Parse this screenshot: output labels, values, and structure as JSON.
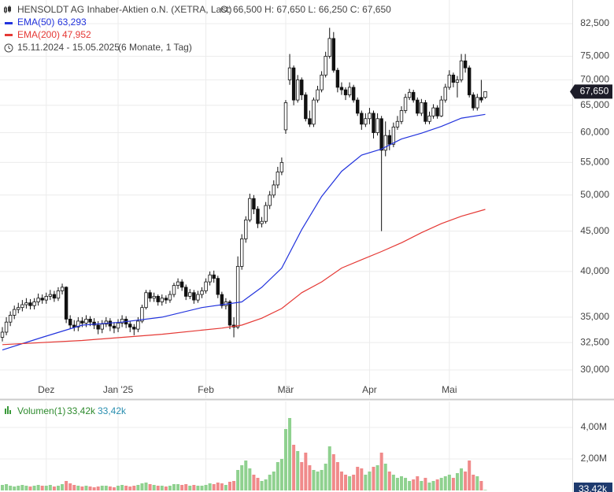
{
  "chart_data": {
    "type": "candlestick",
    "title": "HENSOLDT AG Inhaber-Aktien o.N. (XETRA, Last)",
    "ohlc_text": "O: 66,500  H: 67,650  L: 66,250  C: 67,650",
    "period": "15.11.2024 - 15.05.2025",
    "period_note": "(6 Monate, 1 Tag)",
    "last_price_label": "67,650",
    "up_color": "#ffffff",
    "down_color": "#111111",
    "log_scale": true,
    "grid": true,
    "ylim": [
      27.55,
      88.4
    ],
    "yticks": [
      {
        "value": 30,
        "label": "30,000"
      },
      {
        "value": 32.5,
        "label": "32,500"
      },
      {
        "value": 35,
        "label": "35,000"
      },
      {
        "value": 40,
        "label": "40,000"
      },
      {
        "value": 45,
        "label": "45,000"
      },
      {
        "value": 50,
        "label": "50,000"
      },
      {
        "value": 55,
        "label": "55,000"
      },
      {
        "value": 60,
        "label": "60,000"
      },
      {
        "value": 65,
        "label": "65,000"
      },
      {
        "value": 70,
        "label": "70,000"
      },
      {
        "value": 75,
        "label": "75,000"
      },
      {
        "value": 82.5,
        "label": "82,500"
      }
    ],
    "categories": [
      null,
      null,
      null,
      null,
      null,
      null,
      null,
      null,
      null,
      null,
      null,
      "Dez",
      null,
      null,
      null,
      null,
      null,
      null,
      null,
      null,
      null,
      null,
      null,
      null,
      null,
      null,
      null,
      null,
      null,
      "Jan '25",
      null,
      null,
      null,
      null,
      null,
      null,
      null,
      null,
      null,
      null,
      null,
      null,
      null,
      null,
      null,
      null,
      null,
      null,
      null,
      null,
      null,
      "Feb",
      null,
      null,
      null,
      null,
      null,
      null,
      null,
      null,
      null,
      null,
      null,
      null,
      null,
      null,
      null,
      null,
      null,
      null,
      null,
      "Mär",
      null,
      null,
      null,
      null,
      null,
      null,
      null,
      null,
      null,
      null,
      null,
      null,
      null,
      null,
      null,
      null,
      null,
      null,
      null,
      null,
      "Apr",
      null,
      null,
      null,
      null,
      null,
      null,
      null,
      null,
      null,
      null,
      null,
      null,
      null,
      null,
      null,
      null,
      null,
      null,
      null,
      "Mai",
      null,
      null,
      null,
      null,
      null,
      null,
      null,
      null,
      null
    ],
    "open": [
      33.0,
      33.5,
      34.5,
      35.2,
      35.8,
      36.0,
      36.3,
      36.5,
      36.2,
      36.6,
      37.0,
      36.8,
      37.2,
      37.4,
      37.0,
      37.8,
      38.2,
      34.8,
      34.2,
      34.0,
      34.6,
      34.4,
      34.8,
      34.5,
      34.2,
      33.8,
      34.3,
      34.6,
      34.1,
      33.9,
      34.4,
      34.8,
      34.3,
      34.0,
      33.8,
      34.6,
      36.0,
      37.6,
      37.0,
      37.2,
      36.6,
      37.0,
      36.8,
      37.4,
      38.4,
      38.8,
      38.2,
      37.2,
      37.6,
      36.8,
      37.4,
      37.8,
      38.8,
      39.6,
      39.2,
      37.4,
      36.2,
      36.6,
      34.2,
      34.0,
      40.6,
      44.0,
      46.5,
      49.5,
      48.0,
      46.0,
      46.3,
      48.5,
      50.0,
      51.5,
      53.5,
      60.5,
      70.0,
      72.5,
      66.0,
      70.0,
      67.0,
      62.5,
      61.5,
      66.0,
      68.0,
      71.0,
      75.0,
      79.0,
      72.0,
      68.5,
      68.0,
      67.0,
      68.5,
      66.0,
      63.5,
      61.5,
      62.5,
      63.5,
      60.0,
      62.5,
      57.0,
      59.5,
      58.0,
      61.0,
      62.0,
      64.0,
      66.5,
      67.5,
      66.0,
      63.5,
      65.5,
      62.0,
      63.0,
      64.5,
      63.0,
      66.0,
      68.5,
      71.0,
      69.5,
      70.0,
      74.0,
      72.5,
      67.0,
      64.5,
      66.5,
      66.5
    ],
    "high": [
      34.0,
      35.0,
      35.6,
      36.2,
      36.5,
      36.8,
      37.0,
      36.9,
      37.0,
      37.5,
      37.4,
      37.6,
      37.9,
      37.8,
      38.2,
      38.6,
      38.3,
      35.2,
      34.7,
      35.0,
      35.0,
      35.2,
      35.1,
      34.9,
      34.6,
      34.7,
      35.0,
      34.9,
      34.5,
      34.8,
      35.2,
      35.1,
      34.6,
      34.3,
      35.0,
      36.3,
      37.9,
      37.9,
      37.6,
      37.4,
      37.4,
      37.3,
      37.8,
      38.7,
      39.2,
      39.1,
      38.5,
      38.0,
      37.9,
      37.8,
      38.2,
      39.2,
      40.0,
      40.1,
      39.5,
      37.7,
      37.0,
      36.8,
      35.0,
      41.8,
      44.6,
      47.0,
      50.2,
      50.0,
      48.4,
      46.9,
      49.0,
      50.6,
      52.2,
      54.3,
      55.8,
      66.0,
      75.5,
      73.0,
      71.0,
      70.5,
      67.5,
      64.0,
      66.5,
      68.8,
      71.8,
      76.0,
      81.5,
      80.5,
      72.5,
      69.5,
      68.5,
      69.5,
      69.0,
      66.5,
      64.0,
      63.5,
      64.5,
      64.0,
      63.5,
      63.0,
      62.0,
      60.5,
      61.8,
      63.0,
      64.8,
      67.2,
      68.2,
      68.0,
      66.5,
      66.2,
      66.0,
      63.8,
      65.2,
      65.0,
      66.8,
      69.2,
      72.0,
      71.5,
      70.8,
      75.5,
      75.5,
      73.0,
      67.5,
      67.2,
      70.0,
      67.65
    ],
    "low": [
      32.6,
      33.2,
      34.1,
      34.8,
      35.4,
      35.6,
      35.9,
      35.8,
      35.8,
      36.2,
      36.4,
      36.4,
      36.8,
      36.6,
      36.7,
      37.4,
      34.4,
      33.8,
      33.6,
      33.6,
      34.0,
      34.0,
      34.1,
      33.8,
      33.3,
      33.4,
      34.0,
      33.6,
      33.4,
      33.5,
      34.0,
      33.9,
      33.5,
      33.2,
      33.5,
      34.4,
      35.8,
      36.6,
      36.6,
      36.2,
      36.2,
      36.4,
      36.5,
      37.1,
      38.0,
      37.8,
      36.8,
      36.9,
      36.4,
      36.5,
      37.0,
      37.5,
      38.4,
      38.7,
      37.0,
      35.9,
      35.8,
      33.8,
      33.0,
      33.8,
      40.2,
      43.5,
      46.2,
      47.3,
      45.4,
      45.5,
      46.0,
      48.0,
      49.6,
      51.0,
      53.0,
      59.8,
      69.0,
      65.0,
      65.5,
      66.0,
      62.0,
      61.0,
      61.0,
      65.5,
      67.5,
      70.5,
      74.5,
      71.5,
      67.5,
      67.0,
      66.0,
      66.5,
      65.5,
      63.0,
      60.5,
      61.0,
      61.5,
      59.0,
      59.5,
      45.0,
      56.0,
      57.0,
      57.5,
      60.5,
      61.5,
      63.5,
      66.0,
      65.5,
      63.0,
      63.0,
      61.5,
      61.5,
      62.5,
      62.5,
      62.8,
      65.5,
      68.0,
      68.5,
      66.5,
      69.5,
      71.5,
      66.5,
      64.0,
      64.0,
      65.5,
      66.25
    ],
    "close": [
      33.5,
      34.5,
      35.2,
      35.8,
      36.0,
      36.3,
      36.5,
      36.2,
      36.6,
      37.0,
      36.8,
      37.2,
      37.4,
      37.0,
      37.8,
      38.2,
      34.8,
      34.2,
      34.0,
      34.6,
      34.4,
      34.8,
      34.5,
      34.2,
      33.8,
      34.3,
      34.6,
      34.1,
      33.9,
      34.4,
      34.8,
      34.3,
      34.0,
      33.8,
      34.6,
      36.0,
      37.6,
      37.0,
      37.2,
      36.6,
      37.0,
      36.8,
      37.4,
      38.4,
      38.8,
      38.2,
      37.2,
      37.6,
      36.8,
      37.4,
      37.8,
      38.8,
      39.6,
      39.2,
      37.4,
      36.2,
      36.6,
      34.2,
      34.0,
      40.6,
      44.0,
      46.5,
      49.5,
      48.0,
      46.0,
      46.3,
      48.5,
      50.0,
      51.5,
      53.5,
      55.0,
      65.5,
      72.5,
      66.0,
      70.0,
      67.0,
      62.5,
      61.5,
      66.0,
      68.0,
      71.0,
      75.0,
      79.0,
      72.0,
      68.5,
      68.0,
      67.0,
      68.5,
      66.0,
      63.5,
      61.5,
      62.5,
      63.5,
      60.0,
      62.5,
      57.0,
      59.5,
      58.0,
      61.0,
      62.0,
      64.0,
      66.5,
      67.5,
      66.0,
      63.5,
      65.5,
      62.0,
      63.0,
      64.5,
      63.0,
      66.0,
      68.5,
      71.0,
      69.5,
      70.0,
      74.0,
      72.5,
      67.0,
      64.5,
      66.5,
      66.0,
      67.65
    ],
    "series": [
      {
        "name": "EMA(50)",
        "legend_value": "63,293",
        "color": "#2233dd",
        "x": [
          0,
          10,
          20,
          30,
          40,
          50,
          60,
          65,
          70,
          75,
          80,
          85,
          90,
          95,
          100,
          105,
          110,
          115,
          121
        ],
        "values": [
          31.8,
          33.0,
          34.2,
          34.5,
          35.0,
          36.0,
          36.6,
          38.2,
          40.4,
          45.2,
          49.8,
          53.6,
          56.2,
          57.2,
          58.9,
          59.9,
          61.1,
          62.6,
          63.293
        ]
      },
      {
        "name": "EMA(200)",
        "legend_value": "47,952",
        "color": "#e53935",
        "x": [
          0,
          20,
          40,
          55,
          60,
          65,
          70,
          75,
          80,
          85,
          90,
          95,
          100,
          105,
          110,
          115,
          121
        ],
        "values": [
          32.3,
          32.7,
          33.3,
          33.9,
          34.2,
          34.9,
          35.9,
          37.6,
          38.8,
          40.4,
          41.4,
          42.4,
          43.5,
          44.8,
          46.0,
          47.0,
          47.952
        ]
      }
    ],
    "volume": {
      "name": "Volumen(1)",
      "legend_values": [
        "33,42k",
        "33,42k"
      ],
      "badge": "33,42k",
      "up_color": "#8fd18f",
      "down_color": "#f08a8a",
      "ylim": [
        0,
        5.65
      ],
      "yticks": [
        {
          "value": 2,
          "label": "2,00M"
        },
        {
          "value": 4,
          "label": "4,00M"
        }
      ],
      "values": [
        0.35,
        0.4,
        0.3,
        0.25,
        0.3,
        0.35,
        0.3,
        0.25,
        0.3,
        0.35,
        0.3,
        0.3,
        0.35,
        0.25,
        0.3,
        0.4,
        0.6,
        0.45,
        0.35,
        0.3,
        0.25,
        0.3,
        0.25,
        0.2,
        0.25,
        0.3,
        0.3,
        0.25,
        0.2,
        0.3,
        0.35,
        0.3,
        0.25,
        0.3,
        0.35,
        0.45,
        0.5,
        0.4,
        0.35,
        0.3,
        0.3,
        0.25,
        0.3,
        0.4,
        0.4,
        0.35,
        0.4,
        0.3,
        0.35,
        0.3,
        0.3,
        0.35,
        0.45,
        0.4,
        0.5,
        0.45,
        0.35,
        0.55,
        0.6,
        1.3,
        1.6,
        1.9,
        1.4,
        1.0,
        0.8,
        0.6,
        0.7,
        1.0,
        1.2,
        1.8,
        2.0,
        3.9,
        4.6,
        2.9,
        2.5,
        1.8,
        2.4,
        1.6,
        1.3,
        1.2,
        1.3,
        1.7,
        2.8,
        2.3,
        1.8,
        1.2,
        1.0,
        0.9,
        1.0,
        1.5,
        1.4,
        1.0,
        1.2,
        1.5,
        1.6,
        2.4,
        1.7,
        1.2,
        1.0,
        0.8,
        0.9,
        0.8,
        0.6,
        0.7,
        0.9,
        0.6,
        0.8,
        0.5,
        0.6,
        0.7,
        0.8,
        0.9,
        1.0,
        0.8,
        1.1,
        1.4,
        1.2,
        1.9,
        1.0,
        0.9,
        0.6,
        0.03342
      ]
    }
  }
}
